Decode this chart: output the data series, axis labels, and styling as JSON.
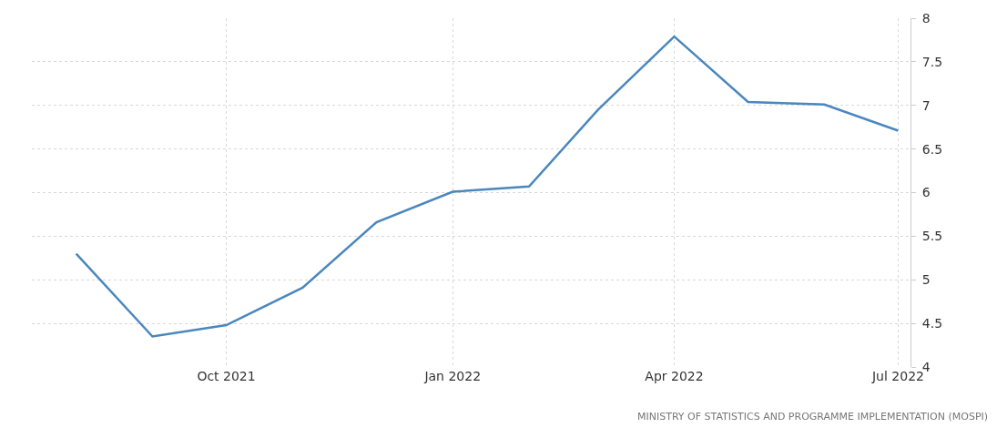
{
  "chart_data": {
    "type": "line",
    "x": [
      "2021-08-01",
      "2021-09-01",
      "2021-10-01",
      "2021-11-01",
      "2021-12-01",
      "2022-01-01",
      "2022-02-01",
      "2022-03-01",
      "2022-04-01",
      "2022-05-01",
      "2022-06-01",
      "2022-07-01"
    ],
    "series": [
      {
        "color": "#4a87be",
        "values": [
          5.3,
          4.35,
          4.48,
          4.91,
          5.66,
          6.01,
          6.07,
          6.95,
          7.79,
          7.04,
          7.01,
          6.71
        ]
      }
    ],
    "xlim": [
      "2021-07-14",
      "2022-07-06"
    ],
    "xticks": [
      {
        "value": "2021-10-01",
        "label": "Oct 2021"
      },
      {
        "value": "2022-01-01",
        "label": "Jan 2022"
      },
      {
        "value": "2022-04-01",
        "label": "Apr 2022"
      },
      {
        "value": "2022-07-01",
        "label": "Jul 2022"
      }
    ],
    "ylim": [
      4,
      8
    ],
    "yticks": [
      4,
      4.5,
      5,
      5.5,
      6,
      6.5,
      7,
      7.5,
      8
    ],
    "grid": true,
    "marker": "none",
    "line_style": "solid",
    "annotations": [
      "MINISTRY OF STATISTICS AND PROGRAMME IMPLEMENTATION (MOSPI)"
    ]
  }
}
